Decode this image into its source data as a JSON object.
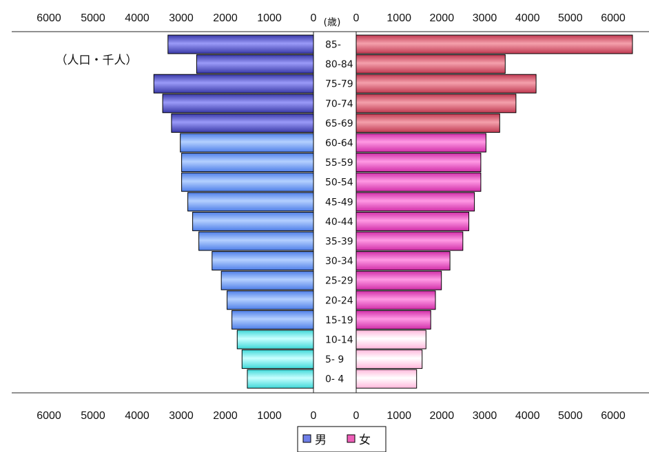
{
  "chart_data": {
    "type": "bar",
    "orientation": "horizontal-population-pyramid",
    "unit_label": "（人口・千人）",
    "age_axis_label": "(歳)",
    "categories": [
      "85-",
      "80-84",
      "75-79",
      "70-74",
      "65-69",
      "60-64",
      "55-59",
      "50-54",
      "45-49",
      "40-44",
      "35-39",
      "30-34",
      "25-29",
      "20-24",
      "15-19",
      "10-14",
      "5- 9",
      "0- 4"
    ],
    "series": [
      {
        "name": "男",
        "side": "left",
        "values": [
          3300,
          2650,
          3620,
          3420,
          3220,
          3020,
          2990,
          2990,
          2850,
          2740,
          2600,
          2300,
          2090,
          1960,
          1850,
          1730,
          1620,
          1500
        ]
      },
      {
        "name": "女",
        "side": "right",
        "values": [
          6450,
          3480,
          4200,
          3730,
          3350,
          3030,
          2910,
          2910,
          2760,
          2630,
          2490,
          2190,
          1990,
          1850,
          1740,
          1630,
          1540,
          1410
        ]
      }
    ],
    "color_groups": [
      {
        "ages": "65+",
        "male": "#6a6ae0",
        "female": "#e26878"
      },
      {
        "ages": "15-64",
        "male": "#7ea8ff",
        "female": "#f060c8"
      },
      {
        "ages": "0-14",
        "male": "#80f0f0",
        "female": "#ffe8f4"
      }
    ],
    "xlim": [
      0,
      6500
    ],
    "top_ticks_left": [
      "6000",
      "5000",
      "4000",
      "3000",
      "2000",
      "1000",
      "0"
    ],
    "top_ticks_right": [
      "0",
      "1000",
      "2000",
      "3000",
      "4000",
      "5000",
      "6000"
    ],
    "bottom_ticks_left": [
      "6000",
      "5000",
      "4000",
      "3000",
      "2000",
      "1000",
      "0"
    ],
    "bottom_ticks_right": [
      "0",
      "1000",
      "2000",
      "3000",
      "4000",
      "5000",
      "6000"
    ],
    "tick_values": [
      6000,
      5000,
      4000,
      3000,
      2000,
      1000,
      0
    ],
    "legend": {
      "position": "bottom-center",
      "items": [
        {
          "label": "男",
          "color": "#6f7fe8"
        },
        {
          "label": "女",
          "color": "#ee5fb8"
        }
      ]
    }
  }
}
